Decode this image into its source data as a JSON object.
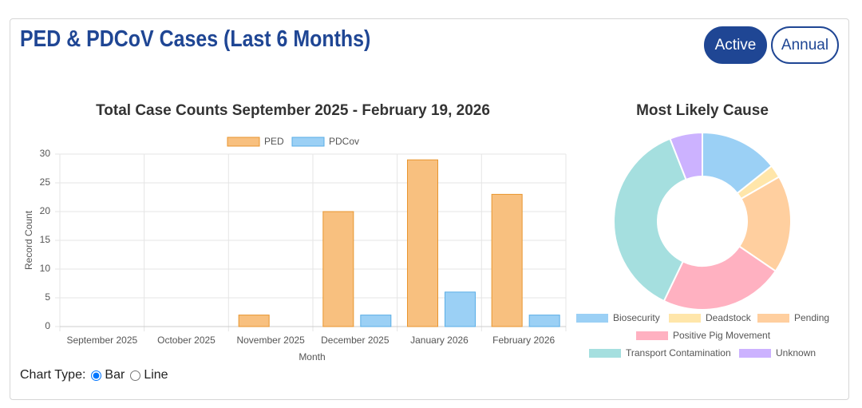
{
  "header": {
    "title": "PED & PDCoV Cases (Last 6 Months)"
  },
  "buttons": [
    "Active",
    "Annual"
  ],
  "chart_type_control": {
    "label": "Chart Type:",
    "options": [
      "Bar",
      "Line"
    ],
    "selected": "Bar"
  },
  "chart_data": [
    {
      "type": "bar",
      "title": "Total Case Counts September 2025 - February 19, 2026",
      "x_label": "Month",
      "y_label": "Record Count",
      "categories": [
        "September 2025",
        "October 2025",
        "November 2025",
        "December 2025",
        "January 2026",
        "February 2026"
      ],
      "series": [
        {
          "name": "PED",
          "color": "#f8c07f",
          "border": "#e8952f",
          "values": [
            0,
            0,
            2,
            20,
            29,
            23
          ]
        },
        {
          "name": "PDCov",
          "color": "#9bd0f5",
          "border": "#5aaee6",
          "values": [
            0,
            0,
            0,
            2,
            6,
            2
          ]
        }
      ],
      "ylim": [
        0,
        30
      ],
      "yticks": [
        0,
        5,
        10,
        15,
        20,
        25,
        30
      ],
      "grid": true,
      "legend": "top"
    },
    {
      "type": "doughnut",
      "title": "Most Likely Cause",
      "categories": [
        "Biosecurity",
        "Deadstock",
        "Pending",
        "Positive Pig Movement",
        "Transport Contamination",
        "Unknown"
      ],
      "values": [
        12,
        2,
        15,
        19,
        31,
        5
      ],
      "colors": [
        "#9bd0f5",
        "#ffe6aa",
        "#ffcf9f",
        "#ffb1c1",
        "#a5dfdf",
        "#ccb2ff"
      ],
      "legend": "bottom"
    }
  ]
}
